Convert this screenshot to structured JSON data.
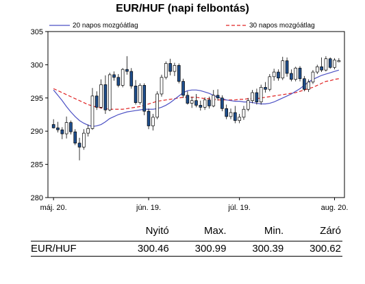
{
  "chart_data": {
    "type": "candlestick",
    "title": "EUR/HUF (napi felbontás)",
    "ylim": [
      280,
      305
    ],
    "y_ticks": [
      280,
      285,
      290,
      295,
      300,
      305
    ],
    "x_tick_labels": [
      "máj. 20.",
      "jún. 19.",
      "júl. 19.",
      "aug. 20."
    ],
    "legend_position": "top",
    "colors": {
      "up_body": "#ffffff",
      "down_body": "#1f4e8c",
      "candle_edge": "#000000",
      "ma20": "#4a4fc4",
      "ma30": "#e02020"
    },
    "series": [
      {
        "name": "20 napos mozgóátlag",
        "style": "solid",
        "values": [
          296.2,
          295.4,
          294.6,
          293.7,
          292.9,
          292.2,
          291.6,
          291.2,
          290.9,
          290.7,
          290.8,
          291.0,
          291.4,
          291.9,
          292.2,
          292.5,
          292.7,
          292.9,
          293.0,
          293.1,
          293.2,
          293.3,
          293.3,
          293.3,
          293.4,
          293.6,
          293.9,
          294.3,
          294.8,
          295.3,
          295.8,
          296.1,
          296.2,
          296.2,
          296.1,
          295.9,
          295.7,
          295.4,
          295.1,
          294.9,
          294.7,
          294.6,
          294.5,
          294.5,
          294.4,
          294.4,
          294.3,
          294.2,
          294.1,
          294.1,
          294.2,
          294.4,
          294.7,
          295.0,
          295.3,
          295.6,
          296.0,
          296.4,
          296.9,
          297.4,
          297.8,
          298.1,
          298.4,
          298.6,
          298.8,
          299.0,
          299.2
        ]
      },
      {
        "name": "30 napos mozgóátlag",
        "style": "dashed",
        "values": [
          296.4,
          296.1,
          295.8,
          295.5,
          295.2,
          294.9,
          294.6,
          294.3,
          294.0,
          293.8,
          293.6,
          293.5,
          293.4,
          293.3,
          293.3,
          293.3,
          293.3,
          293.4,
          293.5,
          293.6,
          293.7,
          293.9,
          294.1,
          294.3,
          294.5,
          294.6,
          294.7,
          294.8,
          294.9,
          295.0,
          295.1,
          295.1,
          295.1,
          295.1,
          295.0,
          294.9,
          294.9,
          294.8,
          294.7,
          294.7,
          294.7,
          294.7,
          294.7,
          294.8,
          294.8,
          294.9,
          294.9,
          294.9,
          295.0,
          295.1,
          295.2,
          295.3,
          295.4,
          295.5,
          295.6,
          295.7,
          295.8,
          296.0,
          296.2,
          296.4,
          296.6,
          296.9,
          297.2,
          297.5,
          297.6,
          297.8,
          297.9
        ]
      }
    ],
    "candles": [
      {
        "o": 291.0,
        "h": 291.8,
        "l": 290.4,
        "c": 290.5
      },
      {
        "o": 290.5,
        "h": 291.4,
        "l": 289.8,
        "c": 290.2
      },
      {
        "o": 290.2,
        "h": 290.6,
        "l": 288.8,
        "c": 289.6
      },
      {
        "o": 289.6,
        "h": 292.2,
        "l": 288.9,
        "c": 291.3
      },
      {
        "o": 291.3,
        "h": 291.6,
        "l": 289.5,
        "c": 289.9
      },
      {
        "o": 289.9,
        "h": 290.3,
        "l": 287.9,
        "c": 288.2
      },
      {
        "o": 288.2,
        "h": 289.0,
        "l": 285.6,
        "c": 287.6
      },
      {
        "o": 287.6,
        "h": 290.3,
        "l": 287.2,
        "c": 289.7
      },
      {
        "o": 289.7,
        "h": 291.0,
        "l": 289.2,
        "c": 290.4
      },
      {
        "o": 290.4,
        "h": 296.5,
        "l": 290.2,
        "c": 295.3
      },
      {
        "o": 295.3,
        "h": 296.0,
        "l": 293.2,
        "c": 293.6
      },
      {
        "o": 293.6,
        "h": 297.8,
        "l": 293.4,
        "c": 297.0
      },
      {
        "o": 297.0,
        "h": 298.4,
        "l": 292.6,
        "c": 293.2
      },
      {
        "o": 293.2,
        "h": 298.8,
        "l": 293.0,
        "c": 298.5
      },
      {
        "o": 298.5,
        "h": 299.0,
        "l": 297.6,
        "c": 298.1
      },
      {
        "o": 298.1,
        "h": 298.6,
        "l": 296.6,
        "c": 296.9
      },
      {
        "o": 296.9,
        "h": 299.5,
        "l": 296.6,
        "c": 299.3
      },
      {
        "o": 299.3,
        "h": 301.3,
        "l": 298.5,
        "c": 299.0
      },
      {
        "o": 299.0,
        "h": 299.5,
        "l": 296.4,
        "c": 296.8
      },
      {
        "o": 296.8,
        "h": 297.7,
        "l": 294.0,
        "c": 294.3
      },
      {
        "o": 294.3,
        "h": 297.2,
        "l": 294.0,
        "c": 296.9
      },
      {
        "o": 296.9,
        "h": 297.2,
        "l": 292.4,
        "c": 293.0
      },
      {
        "o": 293.0,
        "h": 293.4,
        "l": 290.3,
        "c": 290.8
      },
      {
        "o": 290.8,
        "h": 292.6,
        "l": 290.1,
        "c": 292.1
      },
      {
        "o": 292.1,
        "h": 296.0,
        "l": 291.8,
        "c": 295.6
      },
      {
        "o": 295.6,
        "h": 298.5,
        "l": 295.2,
        "c": 298.1
      },
      {
        "o": 298.1,
        "h": 300.5,
        "l": 297.8,
        "c": 300.2
      },
      {
        "o": 300.2,
        "h": 300.9,
        "l": 298.4,
        "c": 299.0
      },
      {
        "o": 299.0,
        "h": 300.3,
        "l": 298.3,
        "c": 299.9
      },
      {
        "o": 299.9,
        "h": 300.2,
        "l": 297.2,
        "c": 297.5
      },
      {
        "o": 297.5,
        "h": 297.9,
        "l": 295.0,
        "c": 295.4
      },
      {
        "o": 295.4,
        "h": 296.0,
        "l": 294.0,
        "c": 294.2
      },
      {
        "o": 294.2,
        "h": 295.2,
        "l": 293.5,
        "c": 294.6
      },
      {
        "o": 294.6,
        "h": 295.6,
        "l": 293.6,
        "c": 293.9
      },
      {
        "o": 293.9,
        "h": 294.6,
        "l": 293.1,
        "c": 293.6
      },
      {
        "o": 293.6,
        "h": 295.1,
        "l": 293.2,
        "c": 294.7
      },
      {
        "o": 294.7,
        "h": 295.2,
        "l": 293.4,
        "c": 293.8
      },
      {
        "o": 293.8,
        "h": 296.2,
        "l": 293.6,
        "c": 295.4
      },
      {
        "o": 295.4,
        "h": 296.3,
        "l": 294.6,
        "c": 295.0
      },
      {
        "o": 295.0,
        "h": 295.4,
        "l": 293.0,
        "c": 293.4
      },
      {
        "o": 293.4,
        "h": 294.0,
        "l": 291.8,
        "c": 292.2
      },
      {
        "o": 292.2,
        "h": 293.4,
        "l": 291.8,
        "c": 292.8
      },
      {
        "o": 292.8,
        "h": 293.8,
        "l": 291.2,
        "c": 291.6
      },
      {
        "o": 291.6,
        "h": 292.6,
        "l": 291.2,
        "c": 292.1
      },
      {
        "o": 292.1,
        "h": 293.8,
        "l": 291.7,
        "c": 293.3
      },
      {
        "o": 293.3,
        "h": 295.0,
        "l": 293.0,
        "c": 294.6
      },
      {
        "o": 294.6,
        "h": 296.2,
        "l": 294.2,
        "c": 295.8
      },
      {
        "o": 295.8,
        "h": 296.4,
        "l": 294.0,
        "c": 294.4
      },
      {
        "o": 294.4,
        "h": 297.0,
        "l": 294.0,
        "c": 296.6
      },
      {
        "o": 296.6,
        "h": 297.4,
        "l": 295.8,
        "c": 296.3
      },
      {
        "o": 296.3,
        "h": 298.6,
        "l": 296.0,
        "c": 298.2
      },
      {
        "o": 298.2,
        "h": 299.4,
        "l": 297.6,
        "c": 298.9
      },
      {
        "o": 298.9,
        "h": 299.3,
        "l": 297.6,
        "c": 298.0
      },
      {
        "o": 298.0,
        "h": 301.2,
        "l": 297.7,
        "c": 300.6
      },
      {
        "o": 300.6,
        "h": 301.1,
        "l": 298.2,
        "c": 298.7
      },
      {
        "o": 298.7,
        "h": 299.3,
        "l": 297.5,
        "c": 297.8
      },
      {
        "o": 297.8,
        "h": 299.7,
        "l": 297.5,
        "c": 299.5
      },
      {
        "o": 299.5,
        "h": 299.8,
        "l": 297.5,
        "c": 297.9
      },
      {
        "o": 297.9,
        "h": 298.3,
        "l": 296.0,
        "c": 296.3
      },
      {
        "o": 296.3,
        "h": 297.8,
        "l": 295.9,
        "c": 297.4
      },
      {
        "o": 297.4,
        "h": 299.2,
        "l": 297.1,
        "c": 298.9
      },
      {
        "o": 298.9,
        "h": 300.0,
        "l": 298.6,
        "c": 299.7
      },
      {
        "o": 299.7,
        "h": 301.1,
        "l": 298.9,
        "c": 299.2
      },
      {
        "o": 299.2,
        "h": 301.3,
        "l": 299.0,
        "c": 300.9
      },
      {
        "o": 300.9,
        "h": 301.1,
        "l": 299.4,
        "c": 299.6
      },
      {
        "o": 299.6,
        "h": 301.0,
        "l": 299.3,
        "c": 300.7
      },
      {
        "o": 300.46,
        "h": 300.99,
        "l": 300.39,
        "c": 300.62
      }
    ]
  },
  "summary": {
    "headers": [
      "Nyitó",
      "Max.",
      "Min.",
      "Záró"
    ],
    "row_label": "EUR/HUF",
    "values": [
      "300.46",
      "300.99",
      "300.39",
      "300.62"
    ]
  }
}
